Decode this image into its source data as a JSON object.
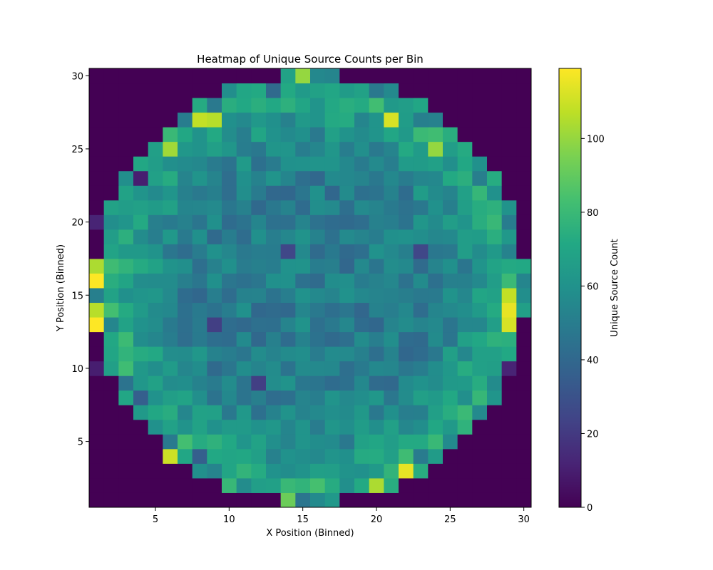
{
  "chart_data": {
    "type": "heatmap",
    "title": "Heatmap of Unique Source Counts per Bin",
    "xlabel": "X Position (Binned)",
    "ylabel": "Y Position (Binned)",
    "colorbar_label": "Unique Source Count",
    "colormap": "viridis",
    "xlim": [
      0.5,
      30.5
    ],
    "ylim": [
      0.5,
      30.5
    ],
    "vmin": 0,
    "vmax": 119,
    "x_ticks": [
      5,
      10,
      15,
      20,
      25,
      30
    ],
    "y_ticks": [
      5,
      10,
      15,
      20,
      25,
      30
    ],
    "colorbar_ticks": [
      0,
      20,
      40,
      60,
      80,
      100
    ],
    "x_bins": [
      1,
      2,
      3,
      4,
      5,
      6,
      7,
      8,
      9,
      10,
      11,
      12,
      13,
      14,
      15,
      16,
      17,
      18,
      19,
      20,
      21,
      22,
      23,
      24,
      25,
      26,
      27,
      28,
      29,
      30
    ],
    "y_bins": [
      1,
      2,
      3,
      4,
      5,
      6,
      7,
      8,
      9,
      10,
      11,
      12,
      13,
      14,
      15,
      16,
      17,
      18,
      19,
      20,
      21,
      22,
      23,
      24,
      25,
      26,
      27,
      28,
      29,
      30
    ],
    "background_value": 0,
    "circle_center": [
      15.5,
      15.5
    ],
    "circle_radius": 14.6,
    "typical_interior_value": 50,
    "notable_cells": [
      {
        "x": 15,
        "y": 30,
        "value": 100
      },
      {
        "x": 21,
        "y": 27,
        "value": 112
      },
      {
        "x": 8,
        "y": 27,
        "value": 108
      },
      {
        "x": 9,
        "y": 27,
        "value": 106
      },
      {
        "x": 6,
        "y": 25,
        "value": 102
      },
      {
        "x": 24,
        "y": 25,
        "value": 100
      },
      {
        "x": 1,
        "y": 17,
        "value": 104
      },
      {
        "x": 1,
        "y": 16,
        "value": 119
      },
      {
        "x": 1,
        "y": 14,
        "value": 106
      },
      {
        "x": 1,
        "y": 13,
        "value": 119
      },
      {
        "x": 29,
        "y": 15,
        "value": 108
      },
      {
        "x": 29,
        "y": 14,
        "value": 115
      },
      {
        "x": 29,
        "y": 13,
        "value": 112
      },
      {
        "x": 6,
        "y": 4,
        "value": 110
      },
      {
        "x": 22,
        "y": 3,
        "value": 115
      },
      {
        "x": 20,
        "y": 2,
        "value": 104
      },
      {
        "x": 14,
        "y": 1,
        "value": 92
      },
      {
        "x": 9,
        "y": 13,
        "value": 22
      },
      {
        "x": 14,
        "y": 18,
        "value": 25
      },
      {
        "x": 23,
        "y": 18,
        "value": 25
      },
      {
        "x": 12,
        "y": 9,
        "value": 22
      },
      {
        "x": 4,
        "y": 23,
        "value": 10
      },
      {
        "x": 1,
        "y": 20,
        "value": 12
      },
      {
        "x": 1,
        "y": 10,
        "value": 10
      },
      {
        "x": 29,
        "y": 10,
        "value": 12
      }
    ]
  }
}
